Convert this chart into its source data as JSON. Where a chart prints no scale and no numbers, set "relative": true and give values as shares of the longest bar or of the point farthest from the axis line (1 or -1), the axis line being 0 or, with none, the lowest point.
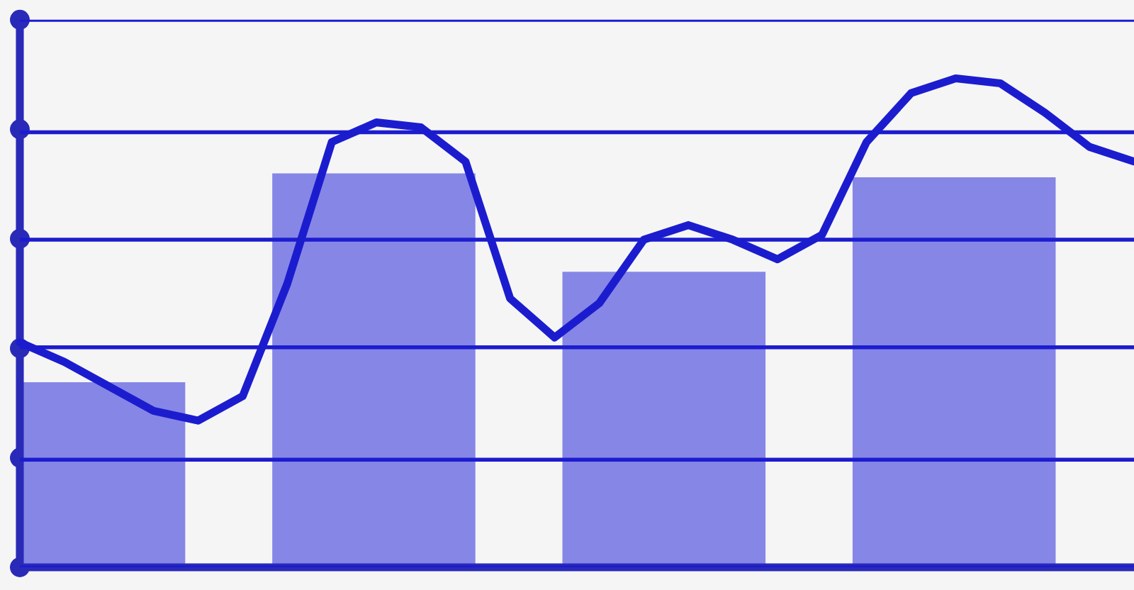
{
  "chart_data": [
    {
      "type": "bar",
      "relative": true,
      "categories": [
        null,
        null,
        null,
        null
      ],
      "color": "#8686e6",
      "values": [
        0.47,
        1.0,
        0.75,
        0.99
      ]
    },
    {
      "type": "line",
      "relative": true,
      "marker": "none",
      "color": "#1c1ccf",
      "categories": [
        null,
        null,
        null,
        null,
        null,
        null,
        null,
        null,
        null,
        null,
        null,
        null,
        null,
        null,
        null,
        null,
        null,
        null,
        null,
        null,
        null,
        null,
        null,
        null,
        null,
        null
      ],
      "values": [
        0.46,
        0.42,
        0.37,
        0.32,
        0.3,
        0.35,
        0.58,
        0.87,
        0.91,
        0.9,
        0.83,
        0.55,
        0.47,
        0.54,
        0.67,
        0.7,
        0.67,
        0.63,
        0.68,
        0.87,
        0.97,
        1.0,
        0.99,
        0.93,
        0.86,
        0.83
      ],
      "ref_lines": [
        {
          "axis": "y",
          "value": 0,
          "color": "#1c1ccf"
        },
        {
          "axis": "y",
          "value": 0.22,
          "color": "#1c1ccf"
        },
        {
          "axis": "y",
          "value": 0.45,
          "color": "#1c1ccf"
        },
        {
          "axis": "y",
          "value": 0.67,
          "color": "#1c1ccf"
        },
        {
          "axis": "y",
          "value": 0.89,
          "color": "#1c1ccf"
        },
        {
          "axis": "y",
          "value": 1.12,
          "color": "#1c1ccf"
        }
      ]
    }
  ]
}
